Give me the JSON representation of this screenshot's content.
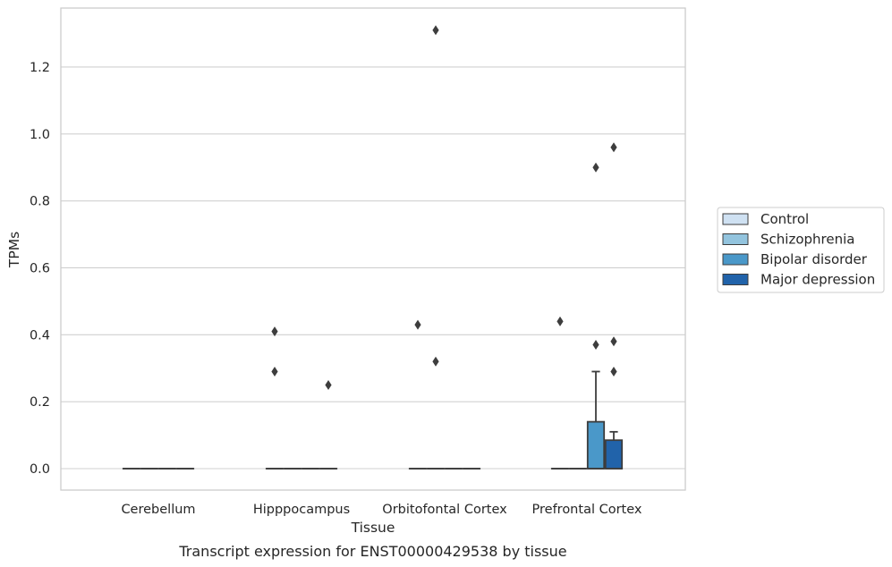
{
  "chart_data": {
    "type": "box",
    "xlabel": "Tissue",
    "ylabel": "TPMs",
    "caption": "Transcript expression for ENST00000429538 by tissue",
    "ylim": [
      -0.065,
      1.38
    ],
    "yticks": [
      0.0,
      0.2,
      0.4,
      0.6,
      0.8,
      1.0,
      1.2
    ],
    "ytick_labels": [
      "0.0",
      "0.2",
      "0.4",
      "0.6",
      "0.8",
      "1.0",
      "1.2"
    ],
    "categories": [
      "Cerebellum",
      "Hipppocampus",
      "Orbitofontal Cortex",
      "Prefrontal Cortex"
    ],
    "grid": "horizontal",
    "legend_position": "right",
    "series": [
      {
        "name": "Control",
        "color": "#cfe1f2",
        "boxes": [
          {
            "q1": 0,
            "median": 0,
            "q3": 0,
            "whislo": 0,
            "whishi": 0,
            "fliers": []
          },
          {
            "q1": 0,
            "median": 0,
            "q3": 0,
            "whislo": 0,
            "whishi": 0,
            "fliers": [
              0.41,
              0.29
            ]
          },
          {
            "q1": 0,
            "median": 0,
            "q3": 0,
            "whislo": 0,
            "whishi": 0,
            "fliers": [
              0.43
            ]
          },
          {
            "q1": 0,
            "median": 0,
            "q3": 0,
            "whislo": 0,
            "whishi": 0,
            "fliers": [
              0.44
            ]
          }
        ]
      },
      {
        "name": "Schizophrenia",
        "color": "#93c4de",
        "boxes": [
          {
            "q1": 0,
            "median": 0,
            "q3": 0,
            "whislo": 0,
            "whishi": 0,
            "fliers": []
          },
          {
            "q1": 0,
            "median": 0,
            "q3": 0,
            "whislo": 0,
            "whishi": 0,
            "fliers": []
          },
          {
            "q1": 0,
            "median": 0,
            "q3": 0,
            "whislo": 0,
            "whishi": 0,
            "fliers": [
              1.31,
              0.32
            ]
          },
          {
            "q1": 0,
            "median": 0,
            "q3": 0,
            "whislo": 0,
            "whishi": 0,
            "fliers": []
          }
        ]
      },
      {
        "name": "Bipolar disorder",
        "color": "#4a98c9",
        "boxes": [
          {
            "q1": 0,
            "median": 0,
            "q3": 0,
            "whislo": 0,
            "whishi": 0,
            "fliers": []
          },
          {
            "q1": 0,
            "median": 0,
            "q3": 0,
            "whislo": 0,
            "whishi": 0,
            "fliers": []
          },
          {
            "q1": 0,
            "median": 0,
            "q3": 0,
            "whislo": 0,
            "whishi": 0,
            "fliers": []
          },
          {
            "q1": 0,
            "median": 0,
            "q3": 0.14,
            "whislo": 0,
            "whishi": 0.29,
            "fliers": [
              0.9,
              0.37
            ]
          }
        ]
      },
      {
        "name": "Major depression",
        "color": "#2163aa",
        "boxes": [
          {
            "q1": 0,
            "median": 0,
            "q3": 0,
            "whislo": 0,
            "whishi": 0,
            "fliers": []
          },
          {
            "q1": 0,
            "median": 0,
            "q3": 0,
            "whislo": 0,
            "whishi": 0,
            "fliers": [
              0.25
            ]
          },
          {
            "q1": 0,
            "median": 0,
            "q3": 0,
            "whislo": 0,
            "whishi": 0,
            "fliers": []
          },
          {
            "q1": 0,
            "median": 0,
            "q3": 0.085,
            "whislo": 0,
            "whishi": 0.11,
            "fliers": [
              0.96,
              0.38,
              0.29
            ]
          }
        ]
      }
    ]
  }
}
